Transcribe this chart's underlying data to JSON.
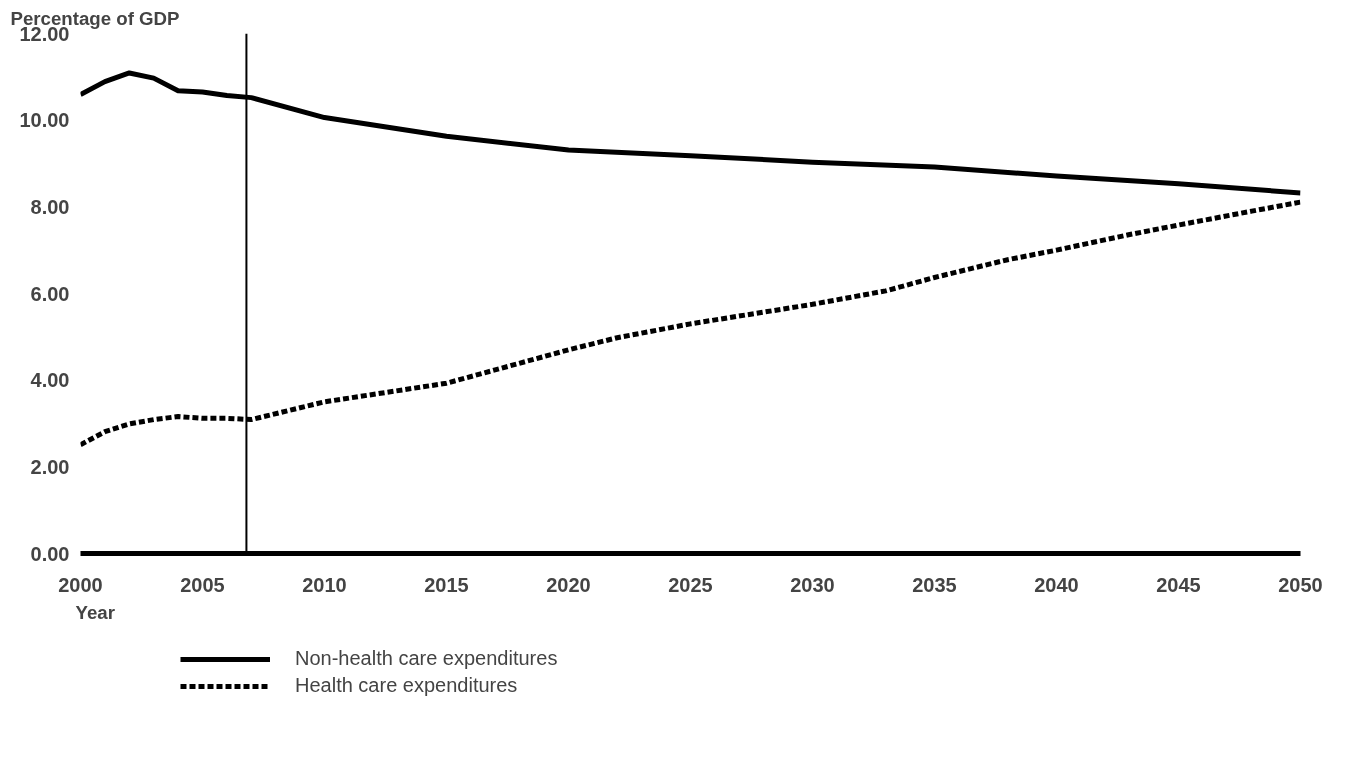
{
  "chart_data": {
    "type": "line",
    "ylabel": "Percentage of GDP",
    "xlabel": "Year",
    "xlim": [
      2000,
      2050
    ],
    "xticks": [
      2000,
      2005,
      2010,
      2015,
      2020,
      2025,
      2030,
      2035,
      2040,
      2045,
      2050
    ],
    "ylim": [
      0,
      12
    ],
    "yticks": [
      {
        "value": 0,
        "label": "0.00"
      },
      {
        "value": 2,
        "label": "2.00"
      },
      {
        "value": 4,
        "label": "4.00"
      },
      {
        "value": 6,
        "label": "6.00"
      },
      {
        "value": 8,
        "label": "8.00"
      },
      {
        "value": 10,
        "label": "10.00"
      },
      {
        "value": 12,
        "label": "12.00"
      }
    ],
    "grid": false,
    "legend": "bottom left",
    "marker": "none",
    "ref_lines": [
      {
        "axis": "x",
        "value": 2006.8,
        "color": "#000000"
      }
    ],
    "series": [
      {
        "name": "Non-health care expenditures",
        "color": "#000000",
        "line_style": "solid",
        "x": [
          2000,
          2001,
          2002,
          2003,
          2004,
          2005,
          2006,
          2007,
          2010,
          2015,
          2020,
          2025,
          2030,
          2035,
          2040,
          2045,
          2050
        ],
        "values": [
          10.59,
          10.89,
          11.09,
          10.97,
          10.68,
          10.65,
          10.57,
          10.52,
          10.06,
          9.63,
          9.31,
          9.18,
          9.03,
          8.92,
          8.71,
          8.53,
          8.32
        ]
      },
      {
        "name": "Health care expenditures",
        "color": "#000000",
        "line_style": "dashed",
        "x": [
          2000,
          2001,
          2002,
          2003,
          2004,
          2005,
          2006,
          2007,
          2010,
          2015,
          2020,
          2022,
          2025,
          2030,
          2033,
          2035,
          2038,
          2040,
          2043,
          2045,
          2048,
          2050
        ],
        "values": [
          2.51,
          2.81,
          2.99,
          3.09,
          3.16,
          3.12,
          3.12,
          3.09,
          3.5,
          3.93,
          4.7,
          4.98,
          5.3,
          5.75,
          6.06,
          6.37,
          6.78,
          7.0,
          7.36,
          7.58,
          7.9,
          8.11
        ]
      }
    ]
  }
}
